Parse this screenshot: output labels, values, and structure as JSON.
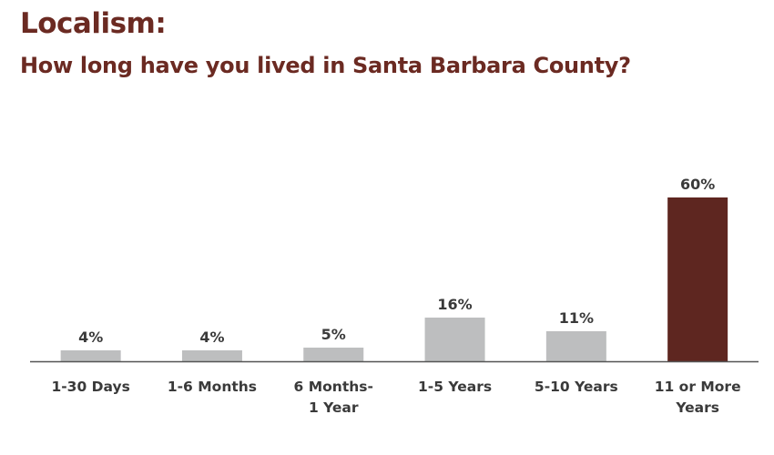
{
  "title": "Localism:",
  "subtitle": "How long have you lived in Santa Barbara County?",
  "colors": {
    "title": "#6b2a22",
    "bar_default": "#bdbebf",
    "bar_highlight": "#5e2620",
    "axis": "#555555",
    "text": "#3a3a3a"
  },
  "chart_data": {
    "type": "bar",
    "categories": [
      "1-30 Days",
      "1-6 Months",
      "6 Months-\n1 Year",
      "1-5 Years",
      "5-10 Years",
      "11 or More\nYears"
    ],
    "values": [
      4,
      4,
      5,
      16,
      11,
      60
    ],
    "value_labels": [
      "4%",
      "4%",
      "5%",
      "16%",
      "11%",
      "60%"
    ],
    "highlight_index": 5,
    "unit": "%",
    "ylim": [
      0,
      60
    ],
    "grid": false,
    "legend": "none"
  }
}
